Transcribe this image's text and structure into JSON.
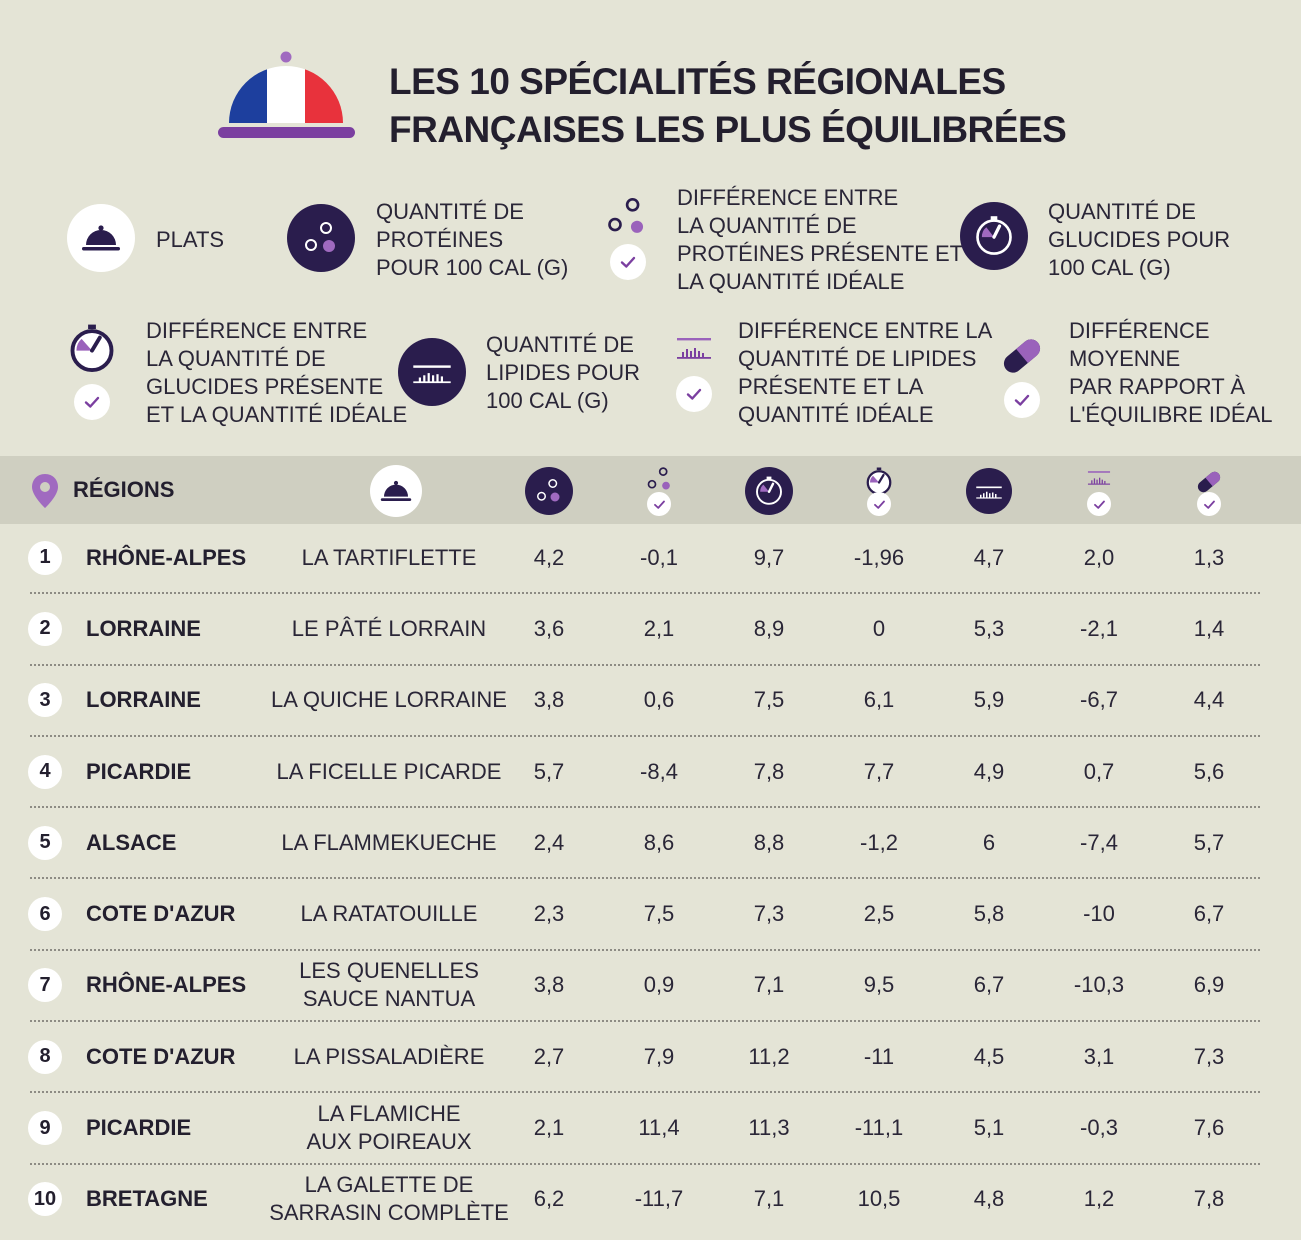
{
  "title": {
    "line1": "LES 10 SPÉCIALITÉS RÉGIONALES",
    "line2": "FRANÇAISES LES PLUS ÉQUILIBRÉES"
  },
  "colors": {
    "background": "#e4e4d6",
    "header_band": "#cfcfc1",
    "dark_purple": "#2a1d4d",
    "accent_purple": "#7b3fa0",
    "flag_blue": "#1d3f9e",
    "flag_red": "#e8323c"
  },
  "legend": {
    "plats": "PLATS",
    "proteines": "QUANTITÉ DE\nPROTÉINES\nPOUR 100 CAL (G)",
    "diff_proteines": "DIFFÉRENCE ENTRE\nLA QUANTITÉ DE\nPROTÉINES PRÉSENTE ET\nLA QUANTITÉ IDÉALE",
    "glucides": "QUANTITÉ DE\nGLUCIDES POUR\n100 CAL (G)",
    "diff_glucides": "DIFFÉRENCE ENTRE\nLA QUANTITÉ DE\nGLUCIDES PRÉSENTE\nET LA QUANTITÉ IDÉALE",
    "lipides": "QUANTITÉ DE\nLIPIDES POUR\n100 CAL (G)",
    "diff_lipides": "DIFFÉRENCE ENTRE LA\nQUANTITÉ DE LIPIDES\nPRÉSENTE ET LA\nQUANTITÉ IDÉALE",
    "diff_moyenne": "DIFFÉRENCE\nMOYENNE\nPAR RAPPORT À\nL'ÉQUILIBRE IDÉAL"
  },
  "table": {
    "header_regions": "RÉGIONS",
    "rows": [
      {
        "rank": "1",
        "region": "RHÔNE-ALPES",
        "dish": "LA TARTIFLETTE",
        "values": [
          "4,2",
          "-0,1",
          "9,7",
          "-1,96",
          "4,7",
          "2,0",
          "1,3"
        ]
      },
      {
        "rank": "2",
        "region": "LORRAINE",
        "dish": "LE PÂTÉ LORRAIN",
        "values": [
          "3,6",
          "2,1",
          "8,9",
          "0",
          "5,3",
          "-2,1",
          "1,4"
        ]
      },
      {
        "rank": "3",
        "region": "LORRAINE",
        "dish": "LA QUICHE LORRAINE",
        "values": [
          "3,8",
          "0,6",
          "7,5",
          "6,1",
          "5,9",
          "-6,7",
          "4,4"
        ]
      },
      {
        "rank": "4",
        "region": "PICARDIE",
        "dish": "LA FICELLE PICARDE",
        "values": [
          "5,7",
          "-8,4",
          "7,8",
          "7,7",
          "4,9",
          "0,7",
          "5,6"
        ]
      },
      {
        "rank": "5",
        "region": "ALSACE",
        "dish": "LA FLAMMEKUECHE",
        "values": [
          "2,4",
          "8,6",
          "8,8",
          "-1,2",
          "6",
          "-7,4",
          "5,7"
        ]
      },
      {
        "rank": "6",
        "region": "COTE D'AZUR",
        "dish": "LA RATATOUILLE",
        "values": [
          "2,3",
          "7,5",
          "7,3",
          "2,5",
          "5,8",
          "-10",
          "6,7"
        ]
      },
      {
        "rank": "7",
        "region": "RHÔNE-ALPES",
        "dish": "LES QUENELLES\nSAUCE NANTUA",
        "values": [
          "3,8",
          "0,9",
          "7,1",
          "9,5",
          "6,7",
          "-10,3",
          "6,9"
        ]
      },
      {
        "rank": "8",
        "region": "COTE D'AZUR",
        "dish": "LA PISSALADIÈRE",
        "values": [
          "2,7",
          "7,9",
          "11,2",
          "-11",
          "4,5",
          "3,1",
          "7,3"
        ]
      },
      {
        "rank": "9",
        "region": "PICARDIE",
        "dish": "LA FLAMICHE\nAUX POIREAUX",
        "values": [
          "2,1",
          "11,4",
          "11,3",
          "-11,1",
          "5,1",
          "-0,3",
          "7,6"
        ]
      },
      {
        "rank": "10",
        "region": "BRETAGNE",
        "dish": "LA GALETTE DE\nSARRASIN COMPLÈTE",
        "values": [
          "6,2",
          "-11,7",
          "7,1",
          "10,5",
          "4,8",
          "1,2",
          "7,8"
        ]
      }
    ]
  }
}
